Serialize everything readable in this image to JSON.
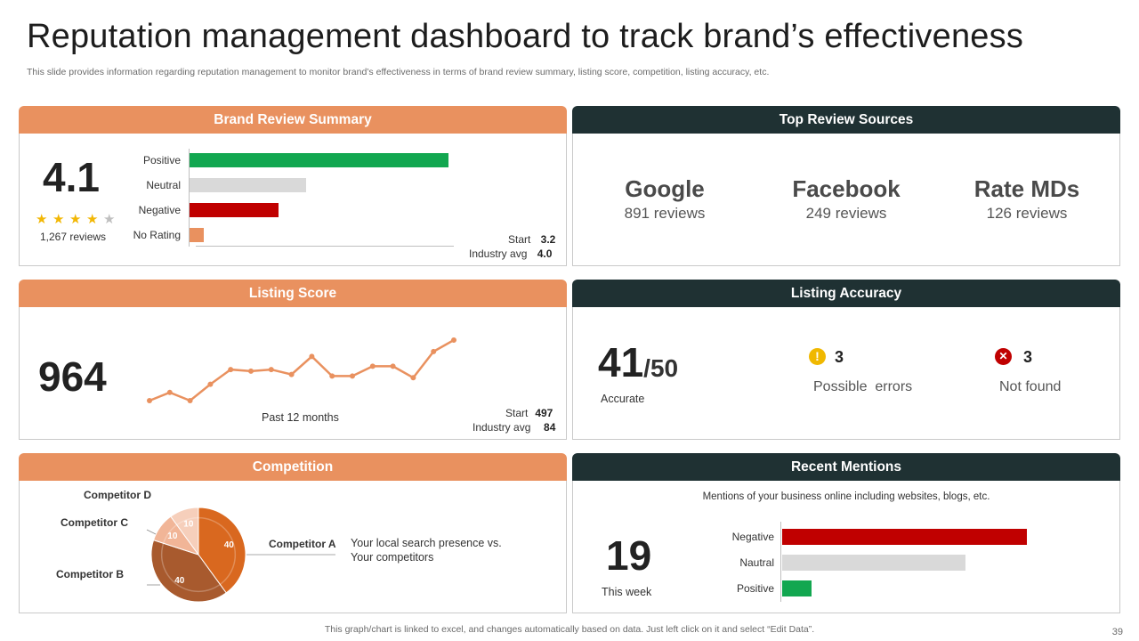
{
  "title": "Reputation management dashboard to track brand’s effectiveness",
  "subtitle": "This slide provides information regarding reputation management to monitor brand’s effectiveness in terms of brand review summary, listing score, competition, listing accuracy, etc.",
  "brand_review": {
    "header": "Brand Review Summary",
    "rating": "4.1",
    "stars_filled": 4,
    "stars_total": 5,
    "reviews": "1,267 reviews",
    "bars": [
      {
        "label": "Positive",
        "value": 73,
        "color": "#12a750"
      },
      {
        "label": "Neutral",
        "value": 33,
        "color": "#d9d9d9"
      },
      {
        "label": "Negative",
        "value": 25,
        "color": "#c00000"
      },
      {
        "label": "No Rating",
        "value": 4,
        "color": "#e9915f"
      }
    ],
    "bar_max": 100,
    "start_label": "Start",
    "start_value": "3.2",
    "industry_label": "Industry avg",
    "industry_value": "4.0"
  },
  "top_sources": {
    "header": "Top Review Sources",
    "items": [
      {
        "name": "Google",
        "count": "891 reviews"
      },
      {
        "name": "Facebook",
        "count": "249 reviews"
      },
      {
        "name": "Rate MDs",
        "count": "126 reviews"
      }
    ]
  },
  "listing_score": {
    "header": "Listing Score",
    "score": "964",
    "period": "Past 12 months",
    "trend": [
      3,
      8,
      3,
      13,
      22,
      21,
      22,
      19,
      30,
      18,
      18,
      24,
      24,
      17,
      33,
      40
    ],
    "start_label": "Start",
    "start_value": "497",
    "industry_label": "Industry avg",
    "industry_value": "84"
  },
  "listing_accuracy": {
    "header": "Listing Accuracy",
    "accurate_num": "41",
    "accurate_den": "/50",
    "accurate_label": "Accurate",
    "errors_count": "3",
    "errors_label": "Possible  errors",
    "notfound_count": "3",
    "notfound_label": "Not found",
    "colors": {
      "warning": "#f0b800",
      "error": "#c00000"
    }
  },
  "competition": {
    "header": "Competition",
    "description_line1": "Your local search presence vs.",
    "description_line2": "Your competitors",
    "chart_data": {
      "type": "pie",
      "title": "",
      "labels": [
        "Competitor A",
        "Competitor B",
        "Competitor C",
        "Competitor D"
      ],
      "values": [
        40,
        40,
        10,
        10
      ],
      "value_labels": [
        "40",
        "40",
        "10",
        "10"
      ],
      "colors": [
        "#d9681f",
        "#a85a2e",
        "#f1b597",
        "#f6cfbb"
      ]
    }
  },
  "recent_mentions": {
    "header": "Recent Mentions",
    "description": "Mentions of your business online including websites, blogs, etc.",
    "count": "19",
    "period": "This week",
    "chart_data": {
      "type": "bar",
      "orientation": "horizontal",
      "categories": [
        "Negative",
        "Nautral",
        "Positive"
      ],
      "values": [
        100,
        75,
        12
      ],
      "colors": [
        "#c00000",
        "#d9d9d9",
        "#12a750"
      ],
      "xlim": [
        0,
        100
      ]
    }
  },
  "footer": "This graph/chart is linked to excel,  and changes automatically based on data. Just left click on it and select “Edit Data”.",
  "page_number": "39",
  "colors": {
    "orange": "#e9915f",
    "dark": "#1f3133",
    "star": "#f2b705",
    "star_empty": "#bfbfbf"
  }
}
